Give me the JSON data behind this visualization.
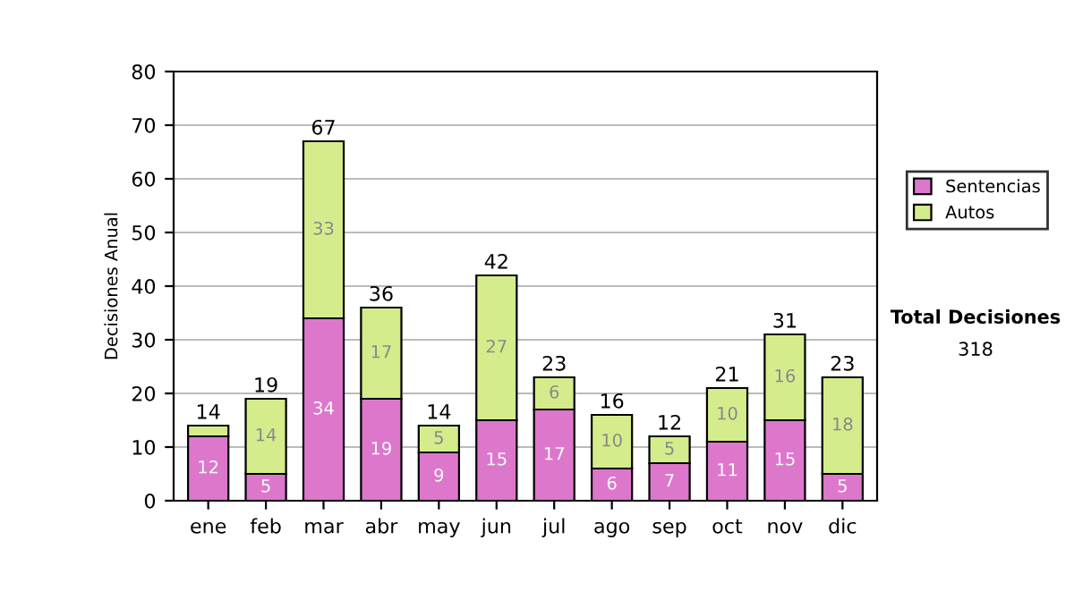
{
  "chart_data": {
    "type": "bar",
    "stacked": true,
    "ylabel": "Decisiones Anual",
    "categories": [
      "ene",
      "feb",
      "mar",
      "abr",
      "may",
      "jun",
      "jul",
      "ago",
      "sep",
      "oct",
      "nov",
      "dic"
    ],
    "series": [
      {
        "name": "Sentencias",
        "color": "#dd77cc",
        "values": [
          12,
          5,
          34,
          19,
          9,
          15,
          17,
          6,
          7,
          11,
          15,
          5
        ],
        "value_labels": [
          "12",
          "5",
          "34",
          "19",
          "9",
          "15",
          "17",
          "6",
          "7",
          "11",
          "15",
          "5"
        ]
      },
      {
        "name": "Autos",
        "color": "#d4ec8c",
        "values": [
          2,
          14,
          33,
          17,
          5,
          27,
          6,
          10,
          5,
          10,
          16,
          18
        ],
        "value_labels": [
          null,
          "14",
          "33",
          "17",
          "5",
          "27",
          "6",
          "10",
          "5",
          "10",
          "16",
          "18"
        ]
      }
    ],
    "totals": [
      "14",
      "19",
      "67",
      "36",
      "14",
      "42",
      "23",
      "16",
      "12",
      "21",
      "31",
      "23"
    ],
    "ylim": [
      0,
      80
    ],
    "yticks": [
      0,
      10,
      20,
      30,
      40,
      50,
      60,
      70,
      80
    ],
    "grid": "y",
    "legend": "right",
    "annotations": [
      "Total Decisiones",
      "318"
    ]
  }
}
